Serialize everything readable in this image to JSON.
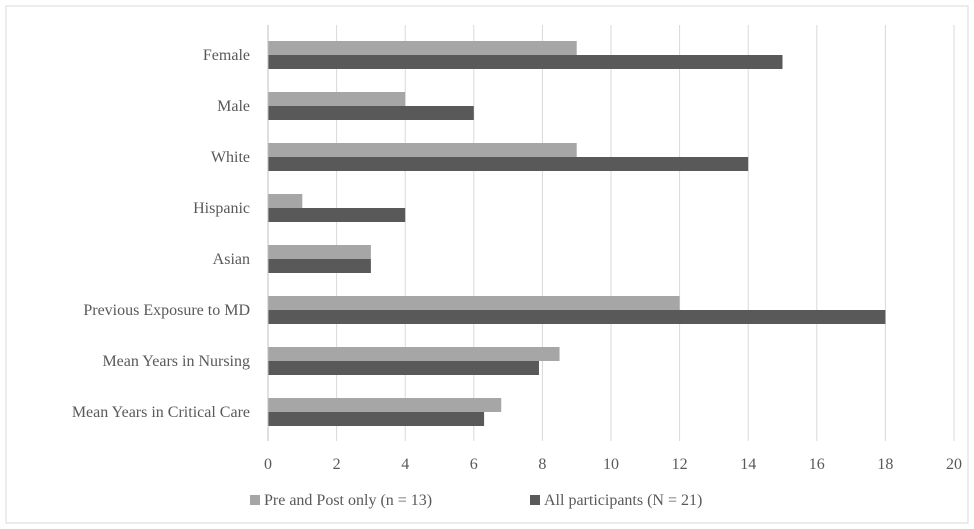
{
  "chart_data": {
    "type": "bar",
    "orientation": "horizontal",
    "title": "",
    "xlabel": "",
    "ylabel": "",
    "categories": [
      "Female",
      "Male",
      "White",
      "Hispanic",
      "Asian",
      "Previous Exposure to MD",
      "Mean Years in Nursing",
      "Mean Years in Critical Care"
    ],
    "series": [
      {
        "name": "Pre and Post only (n = 13)",
        "color": "#a6a6a6",
        "values": [
          9,
          4,
          9,
          1,
          3,
          12,
          8.5,
          6.8
        ]
      },
      {
        "name": "All participants (N = 21)",
        "color": "#595959",
        "values": [
          15,
          6,
          14,
          4,
          3,
          18,
          7.9,
          6.3
        ]
      }
    ],
    "xlim": [
      0,
      20
    ],
    "x_ticks": [
      0,
      2,
      4,
      6,
      8,
      10,
      12,
      14,
      16,
      18,
      20
    ],
    "grid": "vertical",
    "legend_position": "bottom"
  }
}
